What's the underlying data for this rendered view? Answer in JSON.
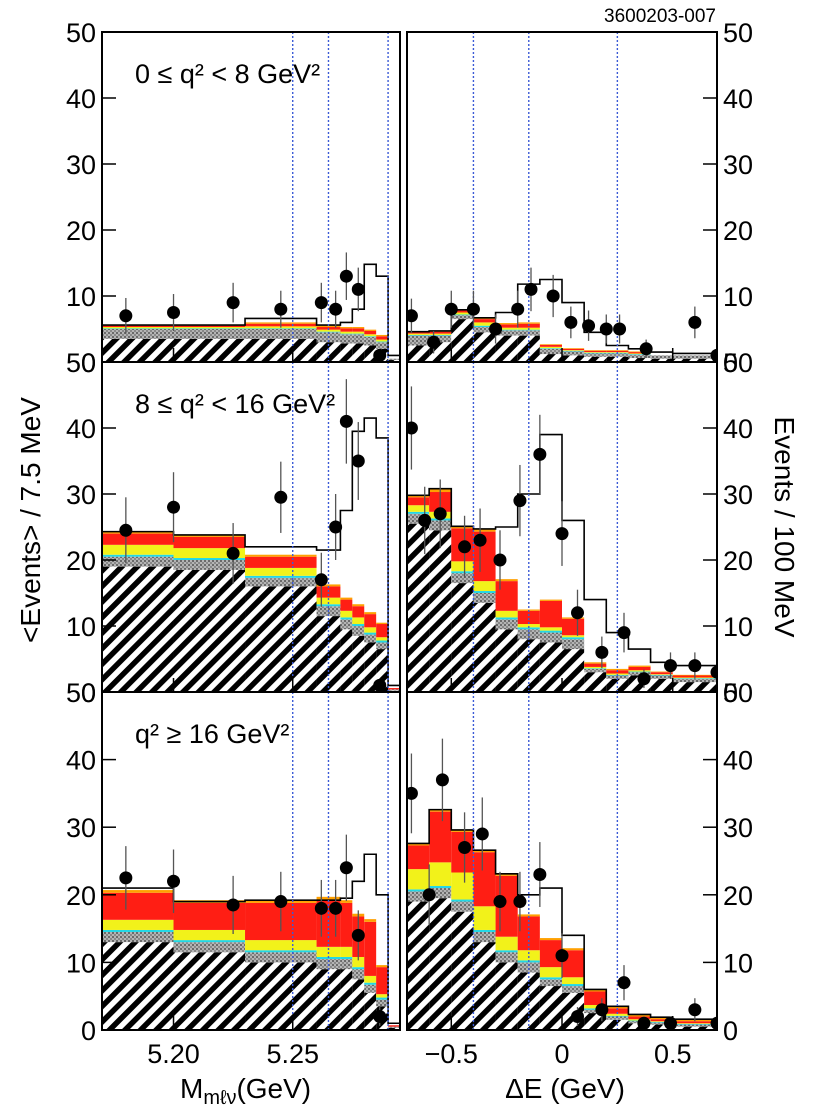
{
  "figure_id": "3600203-007",
  "colors": {
    "comb_bkg": "#000000",
    "gray_bkg": "#9a9a9a",
    "cyan": "#22d7e6",
    "yellow": "#f2f21a",
    "red": "#ff1e14",
    "orange": "#ffa000",
    "signal_line": "#000000",
    "data_point": "#000000",
    "sig_region_line": "#3b5bd6"
  },
  "chart_data": [
    {
      "type": "bar",
      "name": "mbc-low-q2",
      "label": "0 ≤ q² < 8 GeV²",
      "x": {
        "lim": [
          5.17,
          5.295
        ],
        "bins": [
          5.17,
          5.2,
          5.23,
          5.26,
          5.27,
          5.275,
          5.28,
          5.285,
          5.29,
          5.295
        ],
        "ticks": [
          5.2,
          5.25
        ],
        "tick_labels": [
          "5.20",
          "5.25"
        ]
      },
      "y": {
        "lim": [
          0,
          50
        ],
        "ticks": [
          0,
          10,
          20,
          30,
          40,
          50
        ],
        "tick_labels": [
          "0",
          "10",
          "20",
          "30",
          "40",
          "50"
        ]
      },
      "stack": {
        "comb": [
          3.5,
          3.5,
          3.5,
          3.0,
          2.8,
          2.8,
          2.5,
          2.0,
          0.3
        ],
        "gray": [
          1.5,
          1.5,
          1.5,
          1.5,
          1.4,
          1.4,
          1.3,
          1.0,
          0.2
        ],
        "cyan": [
          0.1,
          0.1,
          0.1,
          0.1,
          0.1,
          0.1,
          0.1,
          0.1,
          0.0
        ],
        "yellow": [
          0.2,
          0.2,
          0.3,
          0.3,
          0.3,
          0.3,
          0.3,
          0.3,
          0.0
        ],
        "red": [
          0.2,
          0.2,
          0.4,
          0.4,
          0.5,
          0.5,
          0.5,
          0.5,
          0.0
        ],
        "orange": [
          0.1,
          0.1,
          0.2,
          0.2,
          0.2,
          0.2,
          0.2,
          0.2,
          0.0
        ]
      },
      "total": [
        5.6,
        5.6,
        6.6,
        5.6,
        6.0,
        8.0,
        14.8,
        13.0,
        1.0
      ],
      "data": {
        "x": [
          5.18,
          5.2,
          5.225,
          5.245,
          5.262,
          5.268,
          5.2725,
          5.2775,
          5.2865
        ],
        "y": [
          7,
          7.5,
          9,
          8,
          9,
          8,
          13,
          11,
          1
        ],
        "err": [
          2.7,
          2.8,
          3.0,
          2.8,
          3.0,
          2.8,
          3.6,
          3.3,
          1.0
        ]
      },
      "signal_lines": [
        5.25,
        5.265,
        5.29
      ]
    },
    {
      "type": "bar",
      "name": "de-low-q2",
      "label": "",
      "x": {
        "lim": [
          -0.7,
          0.7
        ],
        "bins": [
          -0.7,
          -0.6,
          -0.5,
          -0.4,
          -0.3,
          -0.2,
          -0.1,
          0.0,
          0.1,
          0.2,
          0.3,
          0.4,
          0.5,
          0.7
        ],
        "ticks": [
          -0.5,
          0,
          0.5
        ],
        "tick_labels": [
          "−0.5",
          "0",
          "0.5"
        ]
      },
      "y": {
        "lim": [
          0,
          50
        ],
        "ticks": [
          0,
          10,
          20,
          30,
          40,
          50
        ],
        "tick_labels": [
          "0",
          "10",
          "20",
          "30",
          "40",
          "50"
        ]
      },
      "stack": {
        "comb": [
          2.5,
          3.0,
          6.5,
          4.5,
          4.0,
          4.0,
          1.2,
          1.0,
          0.8,
          0.8,
          0.6,
          0.5,
          0.5
        ],
        "gray": [
          1.5,
          1.0,
          0.6,
          0.8,
          0.8,
          0.8,
          0.8,
          0.6,
          0.5,
          0.5,
          0.5,
          0.5,
          0.5
        ],
        "cyan": [
          0.1,
          0.1,
          0.1,
          0.2,
          0.1,
          0.1,
          0.1,
          0.1,
          0.1,
          0.1,
          0.1,
          0.0,
          0.0
        ],
        "yellow": [
          0.2,
          0.2,
          0.3,
          0.5,
          0.3,
          0.3,
          0.2,
          0.1,
          0.1,
          0.1,
          0.1,
          0.0,
          0.0
        ],
        "red": [
          0.2,
          0.3,
          0.3,
          0.5,
          0.5,
          0.6,
          0.3,
          0.2,
          0.2,
          0.2,
          0.2,
          0.0,
          0.0
        ],
        "orange": [
          0.1,
          0.1,
          0.1,
          0.2,
          0.2,
          0.2,
          0.1,
          0.1,
          0.1,
          0.1,
          0.1,
          0.0,
          0.0
        ]
      },
      "total": [
        4.6,
        4.7,
        7.9,
        6.7,
        7.5,
        11.8,
        12.5,
        9.0,
        4.5,
        2.5,
        2.0,
        1.5,
        1.3
      ],
      "data": {
        "x": [
          -0.68,
          -0.58,
          -0.5,
          -0.4,
          -0.3,
          -0.2,
          -0.14,
          -0.04,
          0.04,
          0.12,
          0.2,
          0.26,
          0.38,
          0.6,
          0.7
        ],
        "y": [
          7,
          3,
          8,
          8,
          5,
          8,
          11,
          10,
          6,
          5.5,
          5,
          5,
          2,
          6,
          1
        ],
        "err": [
          2.6,
          1.7,
          2.8,
          2.8,
          2.2,
          2.8,
          3.3,
          3.2,
          2.4,
          2.3,
          2.2,
          2.2,
          1.4,
          2.4,
          1.0
        ]
      },
      "signal_lines": [
        -0.4,
        -0.15,
        0.25
      ]
    },
    {
      "type": "bar",
      "name": "mbc-mid-q2",
      "label": "8 ≤ q² < 16 GeV²",
      "x": {
        "lim": [
          5.17,
          5.295
        ],
        "bins": [
          5.17,
          5.2,
          5.23,
          5.26,
          5.27,
          5.275,
          5.28,
          5.285,
          5.29,
          5.295
        ],
        "ticks": [
          5.2,
          5.25
        ],
        "tick_labels": [
          "5.20",
          "5.25"
        ]
      },
      "y": {
        "lim": [
          0,
          50
        ],
        "ticks": [
          0,
          10,
          20,
          30,
          40,
          50
        ],
        "tick_labels": [
          "0",
          "10",
          "20",
          "30",
          "40",
          "50"
        ]
      },
      "stack": {
        "comb": [
          19,
          18.5,
          16,
          11.5,
          9.5,
          8.5,
          7.5,
          6.5,
          0.2
        ],
        "gray": [
          1.5,
          1.5,
          1.3,
          1.5,
          1.5,
          1.5,
          1.2,
          1.0,
          0.2
        ],
        "cyan": [
          0.3,
          0.3,
          0.3,
          0.3,
          0.3,
          0.3,
          0.3,
          0.3,
          0.0
        ],
        "yellow": [
          1.5,
          1.5,
          1.2,
          1.0,
          1.0,
          1.0,
          0.8,
          0.5,
          0.0
        ],
        "red": [
          1.7,
          1.7,
          1.7,
          1.7,
          1.7,
          1.7,
          2.0,
          2.0,
          0.2
        ],
        "orange": [
          0.3,
          0.3,
          0.3,
          0.3,
          0.3,
          0.3,
          0.3,
          0.2,
          0.0
        ]
      },
      "total": [
        24.3,
        23.8,
        22.0,
        21.5,
        27.5,
        39.5,
        41.5,
        38.5,
        1.0
      ],
      "data": {
        "x": [
          5.18,
          5.2,
          5.225,
          5.245,
          5.262,
          5.268,
          5.2725,
          5.2775,
          5.2865
        ],
        "y": [
          24.5,
          28,
          21,
          29.5,
          17,
          25,
          41,
          35,
          1
        ],
        "err": [
          5,
          5.3,
          4.6,
          5.4,
          4.1,
          5.0,
          6.4,
          5.9,
          1.0
        ]
      },
      "signal_lines": [
        5.25,
        5.265,
        5.29
      ]
    },
    {
      "type": "bar",
      "name": "de-mid-q2",
      "label": "",
      "x": {
        "lim": [
          -0.7,
          0.7
        ],
        "bins": [
          -0.7,
          -0.6,
          -0.5,
          -0.4,
          -0.3,
          -0.2,
          -0.1,
          0.0,
          0.1,
          0.2,
          0.3,
          0.4,
          0.5,
          0.7
        ],
        "ticks": [
          -0.5,
          0,
          0.5
        ],
        "tick_labels": [
          "−0.5",
          "0",
          "0.5"
        ]
      },
      "y": {
        "lim": [
          0,
          50
        ],
        "ticks": [
          0,
          10,
          20,
          30,
          40,
          50
        ],
        "tick_labels": [
          "0",
          "10",
          "20",
          "30",
          "40",
          "50"
        ]
      },
      "stack": {
        "comb": [
          25.5,
          24.5,
          16.5,
          13.5,
          9.5,
          8.0,
          7.5,
          6.5,
          3.0,
          2.0,
          2.5,
          2.0,
          1.5
        ],
        "gray": [
          1.5,
          1.5,
          1.5,
          1.5,
          1.5,
          1.5,
          1.5,
          1.5,
          0.5,
          0.5,
          0.5,
          0.5,
          0.5
        ],
        "cyan": [
          0.3,
          0.3,
          0.3,
          0.3,
          0.3,
          0.3,
          0.3,
          0.3,
          0.1,
          0.1,
          0.1,
          0.1,
          0.1
        ],
        "yellow": [
          1.0,
          1.0,
          1.5,
          1.5,
          1.0,
          0.5,
          0.5,
          0.3,
          0.2,
          0.2,
          0.2,
          0.1,
          0.1
        ],
        "red": [
          1.2,
          3.0,
          5.0,
          7.5,
          4.5,
          2.0,
          4.0,
          2.5,
          0.5,
          0.5,
          0.5,
          0.3,
          0.3
        ],
        "orange": [
          0.3,
          0.5,
          0.3,
          0.4,
          0.3,
          0.2,
          0.2,
          0.2,
          0.2,
          0.2,
          0.2,
          0.1,
          0.1
        ]
      },
      "total": [
        29.8,
        30.8,
        25.1,
        24.7,
        25.0,
        30.0,
        39.0,
        26.0,
        14.0,
        9.0,
        6.5,
        4.5,
        4.0
      ],
      "data": {
        "x": [
          -0.68,
          -0.62,
          -0.55,
          -0.44,
          -0.37,
          -0.28,
          -0.19,
          -0.1,
          0.0,
          0.07,
          0.18,
          0.28,
          0.37,
          0.49,
          0.6,
          0.7
        ],
        "y": [
          40,
          26,
          27,
          22,
          23,
          20,
          29,
          36,
          24,
          12,
          6,
          9,
          2,
          4,
          4,
          3
        ],
        "err": [
          6.3,
          5.1,
          5.2,
          4.7,
          4.8,
          4.5,
          5.4,
          6.0,
          4.9,
          3.5,
          2.4,
          3.0,
          1.4,
          2.0,
          2.0,
          1.7
        ]
      },
      "signal_lines": [
        -0.4,
        -0.15,
        0.25
      ]
    },
    {
      "type": "bar",
      "name": "mbc-high-q2",
      "label": "q² ≥ 16 GeV²",
      "x": {
        "lim": [
          5.17,
          5.295
        ],
        "bins": [
          5.17,
          5.2,
          5.23,
          5.26,
          5.27,
          5.275,
          5.28,
          5.285,
          5.29,
          5.295
        ],
        "ticks": [
          5.2,
          5.25
        ],
        "tick_labels": [
          "5.20",
          "5.25"
        ]
      },
      "y": {
        "lim": [
          0,
          50
        ],
        "ticks": [
          0,
          10,
          20,
          30,
          40,
          50
        ],
        "tick_labels": [
          "0",
          "10",
          "20",
          "30",
          "40",
          "50"
        ]
      },
      "stack": {
        "comb": [
          13,
          11.5,
          10,
          9.0,
          9.0,
          7.5,
          5.5,
          3.5,
          0.3
        ],
        "gray": [
          1.5,
          1.5,
          1.5,
          1.5,
          1.5,
          1.5,
          1.2,
          1.0,
          0.2
        ],
        "cyan": [
          0.3,
          0.3,
          0.3,
          0.3,
          0.3,
          0.3,
          0.3,
          0.3,
          0.0
        ],
        "yellow": [
          1.5,
          1.5,
          1.5,
          1.5,
          1.5,
          1.5,
          1.0,
          0.5,
          0.0
        ],
        "red": [
          4.0,
          4.0,
          5.5,
          7.0,
          6.5,
          6.0,
          8.0,
          4.0,
          0.2
        ],
        "orange": [
          0.4,
          0.4,
          0.4,
          0.4,
          0.4,
          0.4,
          0.4,
          0.3,
          0.0
        ]
      },
      "total": [
        21.0,
        19.0,
        19.2,
        19.2,
        19.5,
        22.0,
        26.0,
        20.0,
        1.0
      ],
      "data": {
        "x": [
          5.18,
          5.2,
          5.225,
          5.245,
          5.262,
          5.268,
          5.2725,
          5.2775,
          5.2865
        ],
        "y": [
          22.5,
          22,
          18.5,
          19,
          18,
          18,
          24,
          14,
          2
        ],
        "err": [
          4.7,
          4.7,
          4.3,
          4.4,
          4.2,
          4.2,
          4.9,
          3.7,
          1.4
        ]
      },
      "signal_lines": [
        5.25,
        5.265,
        5.29
      ]
    },
    {
      "type": "bar",
      "name": "de-high-q2",
      "label": "",
      "x": {
        "lim": [
          -0.7,
          0.7
        ],
        "bins": [
          -0.7,
          -0.6,
          -0.5,
          -0.4,
          -0.3,
          -0.2,
          -0.1,
          0.0,
          0.1,
          0.2,
          0.3,
          0.4,
          0.5,
          0.7
        ],
        "ticks": [
          -0.5,
          0,
          0.5
        ],
        "tick_labels": [
          "−0.5",
          "0",
          "0.5"
        ]
      },
      "y": {
        "lim": [
          0,
          50
        ],
        "ticks": [
          0,
          10,
          20,
          30,
          40,
          50
        ],
        "tick_labels": [
          "0",
          "10",
          "20",
          "30",
          "40",
          "50"
        ]
      },
      "stack": {
        "comb": [
          19,
          19.5,
          17.5,
          13,
          10,
          8.5,
          6.5,
          5.5,
          2.5,
          1.5,
          1.0,
          0.8,
          0.5
        ],
        "gray": [
          1.5,
          1.5,
          1.5,
          1.5,
          1.5,
          1.5,
          1.0,
          1.0,
          0.5,
          0.5,
          0.3,
          0.3,
          0.3
        ],
        "cyan": [
          0.3,
          0.3,
          0.3,
          0.3,
          0.3,
          0.3,
          0.3,
          0.3,
          0.2,
          0.1,
          0.1,
          0.1,
          0.1
        ],
        "yellow": [
          3.0,
          3.5,
          4.0,
          3.5,
          2.0,
          1.5,
          1.5,
          1.0,
          0.5,
          0.3,
          0.2,
          0.1,
          0.1
        ],
        "red": [
          3.5,
          7.5,
          6.0,
          8.0,
          9.0,
          5.0,
          4.0,
          4.0,
          2.0,
          0.8,
          0.4,
          0.3,
          0.3
        ],
        "orange": [
          0.3,
          0.3,
          0.3,
          0.3,
          0.3,
          0.3,
          0.3,
          0.3,
          0.3,
          0.3,
          0.3,
          0.3,
          0.3
        ]
      },
      "total": [
        27.6,
        32.6,
        29.6,
        26.6,
        23.1,
        20.0,
        21.0,
        14.0,
        6.0,
        3.5,
        2.3,
        1.9,
        1.6
      ],
      "data": {
        "x": [
          -0.68,
          -0.6,
          -0.54,
          -0.44,
          -0.36,
          -0.28,
          -0.19,
          -0.1,
          0.0,
          0.07,
          0.18,
          0.28,
          0.37,
          0.49,
          0.6,
          0.7
        ],
        "y": [
          35,
          20,
          37,
          27,
          29,
          19,
          19,
          23,
          11,
          2,
          3,
          7,
          1,
          1,
          3,
          1
        ],
        "err": [
          5.9,
          4.5,
          6.1,
          5.2,
          5.4,
          4.4,
          4.4,
          4.8,
          3.3,
          1.4,
          1.7,
          2.6,
          1.0,
          1.0,
          1.7,
          1.0
        ]
      },
      "signal_lines": [
        -0.4,
        -0.15,
        0.25
      ]
    }
  ],
  "axis_titles": {
    "left_y": "<Events> / 7.5 MeV",
    "right_y": "Events / 100 MeV",
    "left_x_main": "M",
    "left_x_sub": "mℓν",
    "left_x_unit": "(GeV)",
    "right_x": "ΔE (GeV)"
  }
}
